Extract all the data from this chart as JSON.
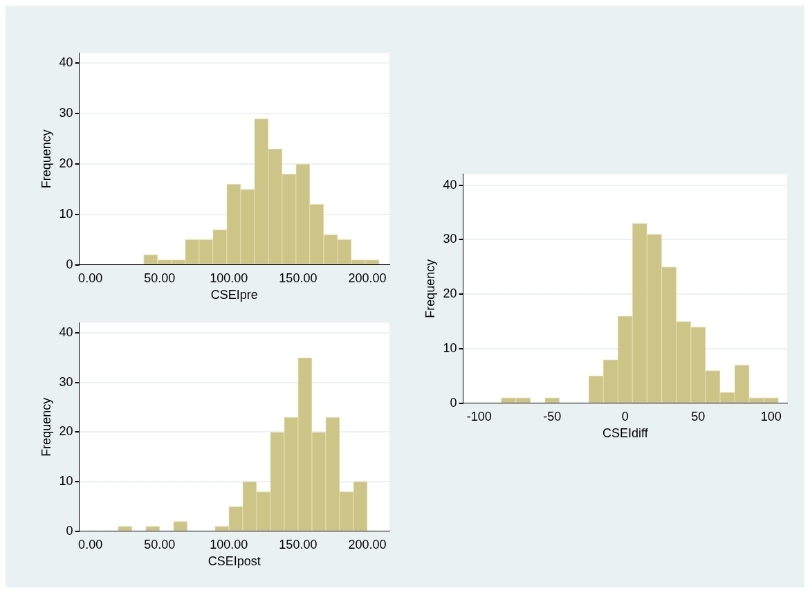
{
  "chart_data": [
    {
      "type": "histogram",
      "xlabel": "CSEIpre",
      "ylabel": "Frequency",
      "color": "#cdc487",
      "bins": [
        38.5,
        48.5,
        58.5,
        68.5,
        78.5,
        88.5,
        98.5,
        108.5,
        118.5,
        128.5,
        138.5,
        148.5,
        158.5,
        168.5,
        178.5,
        188.5,
        198.5,
        208.5
      ],
      "values": [
        2,
        1,
        1,
        5,
        5,
        7,
        16,
        15,
        29,
        23,
        18,
        20,
        12,
        6,
        5,
        1,
        1
      ],
      "xlim": [
        -8,
        216
      ],
      "ylim": [
        0,
        42
      ],
      "xticks": [
        {
          "value": 0,
          "label": "0.00"
        },
        {
          "value": 50,
          "label": "50.00"
        },
        {
          "value": 100,
          "label": "100.00"
        },
        {
          "value": 150,
          "label": "150.00"
        },
        {
          "value": 200,
          "label": "200.00"
        }
      ],
      "yticks": [
        0,
        10,
        20,
        30,
        40
      ],
      "grid": "y"
    },
    {
      "type": "histogram",
      "xlabel": "CSEIpost",
      "ylabel": "Frequency",
      "color": "#cdc487",
      "bins": [
        20,
        30,
        40,
        50,
        60,
        70,
        80,
        90,
        100,
        110,
        120,
        130,
        140,
        150,
        160,
        170,
        180,
        190,
        200
      ],
      "values": [
        1,
        0,
        1,
        0,
        2,
        0,
        0,
        1,
        5,
        10,
        8,
        20,
        23,
        35,
        20,
        23,
        8,
        10
      ],
      "xlim": [
        -8,
        216
      ],
      "ylim": [
        0,
        42
      ],
      "xticks": [
        {
          "value": 0,
          "label": "0.00"
        },
        {
          "value": 50,
          "label": "50.00"
        },
        {
          "value": 100,
          "label": "100.00"
        },
        {
          "value": 150,
          "label": "150.00"
        },
        {
          "value": 200,
          "label": "200.00"
        }
      ],
      "yticks": [
        0,
        10,
        20,
        30,
        40
      ],
      "grid": "y"
    },
    {
      "type": "histogram",
      "xlabel": "CSEIdiff",
      "ylabel": "Frequency",
      "color": "#cdc487",
      "bins": [
        -85,
        -75,
        -65,
        -55,
        -45,
        -35,
        -25,
        -15,
        -5,
        5,
        15,
        25,
        35,
        45,
        55,
        65,
        75,
        85,
        95,
        105
      ],
      "values": [
        1,
        1,
        0,
        1,
        0,
        0,
        5,
        8,
        16,
        33,
        31,
        25,
        15,
        14,
        6,
        2,
        7,
        1,
        1
      ],
      "xlim": [
        -111,
        111
      ],
      "ylim": [
        0,
        42
      ],
      "xticks": [
        -100,
        -50,
        0,
        50,
        100
      ],
      "yticks": [
        0,
        10,
        20,
        30,
        40
      ],
      "grid": "y"
    }
  ]
}
